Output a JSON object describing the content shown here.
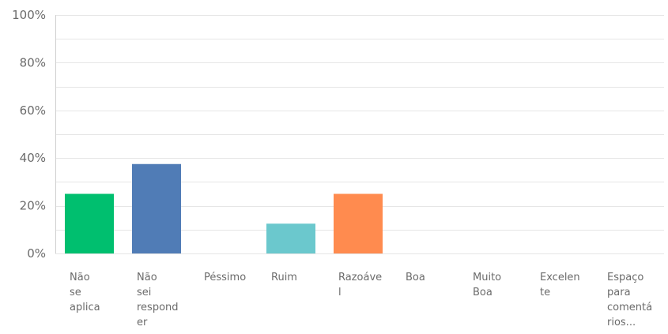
{
  "chart_data": {
    "type": "bar",
    "categories": [
      "Não se aplica",
      "Não sei responder",
      "Péssimo",
      "Ruim",
      "Razoável",
      "Boa",
      "Muito Boa",
      "Excelente",
      "Espaço para comentários..."
    ],
    "category_label_lines": [
      [
        "Não",
        "se",
        "aplica"
      ],
      [
        "Não",
        "sei",
        "respond",
        "er"
      ],
      [
        "Péssimo"
      ],
      [
        "Ruim"
      ],
      [
        "Razoáve",
        "l"
      ],
      [
        "Boa"
      ],
      [
        "Muito",
        "Boa"
      ],
      [
        "Excelen",
        "te"
      ],
      [
        "Espaço",
        "para",
        "comentá",
        "rios..."
      ]
    ],
    "values": [
      25,
      37.5,
      0,
      12.5,
      25,
      0,
      0,
      0,
      0
    ],
    "bar_colors": [
      "#00bf6f",
      "#507cb6",
      "#f05b24",
      "#6bc8cd",
      "#ff8b4f",
      "#7d5ba6",
      "#dd6b8f",
      "#f4c400",
      "#a2a2a2"
    ],
    "ylim": [
      0,
      100
    ],
    "yticks": [
      0,
      20,
      40,
      60,
      80,
      100
    ],
    "ytick_labels": [
      "0%",
      "20%",
      "40%",
      "60%",
      "80%",
      "100%"
    ],
    "grid": true,
    "title": "",
    "xlabel": "",
    "ylabel": ""
  }
}
